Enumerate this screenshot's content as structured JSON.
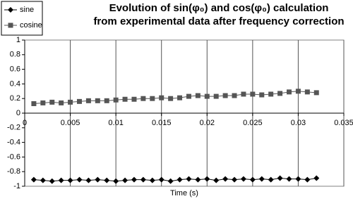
{
  "chart_data": {
    "type": "line",
    "title": [
      "Evolution of sin(φ₀) and cos(φ₀) calculation",
      "from experimental data after frequency correction"
    ],
    "x_label": "Time (s)",
    "x": [
      0.001,
      0.002,
      0.003,
      0.004,
      0.005,
      0.006,
      0.007,
      0.008,
      0.009,
      0.01,
      0.011,
      0.012,
      0.013,
      0.014,
      0.015,
      0.016,
      0.017,
      0.018,
      0.019,
      0.02,
      0.021,
      0.022,
      0.023,
      0.024,
      0.025,
      0.026,
      0.027,
      0.028,
      0.029,
      0.03,
      0.031,
      0.032
    ],
    "series": [
      {
        "name": "sine",
        "color": "#000000",
        "marker": "diamond",
        "values": [
          -0.91,
          -0.92,
          -0.93,
          -0.92,
          -0.92,
          -0.91,
          -0.92,
          -0.91,
          -0.92,
          -0.93,
          -0.92,
          -0.91,
          -0.91,
          -0.92,
          -0.91,
          -0.93,
          -0.91,
          -0.9,
          -0.91,
          -0.9,
          -0.92,
          -0.9,
          -0.91,
          -0.9,
          -0.91,
          -0.9,
          -0.91,
          -0.89,
          -0.9,
          -0.9,
          -0.91,
          -0.89
        ]
      },
      {
        "name": "cosine",
        "color": "#555555",
        "marker": "square",
        "values": [
          0.13,
          0.14,
          0.15,
          0.14,
          0.15,
          0.16,
          0.17,
          0.17,
          0.17,
          0.18,
          0.19,
          0.19,
          0.2,
          0.2,
          0.21,
          0.2,
          0.21,
          0.23,
          0.24,
          0.23,
          0.23,
          0.24,
          0.24,
          0.26,
          0.26,
          0.25,
          0.26,
          0.27,
          0.29,
          0.3,
          0.29,
          0.28
        ]
      }
    ],
    "xlim": [
      0,
      0.035
    ],
    "xticks": [
      0,
      0.005,
      0.01,
      0.015,
      0.02,
      0.025,
      0.03,
      0.035
    ],
    "ylim": [
      -1,
      1
    ],
    "yticks": [
      -1,
      -0.8,
      -0.6,
      -0.4,
      -0.2,
      0,
      0.2,
      0.4,
      0.6,
      0.8,
      1
    ],
    "grid": "x",
    "legend": "top-left"
  }
}
